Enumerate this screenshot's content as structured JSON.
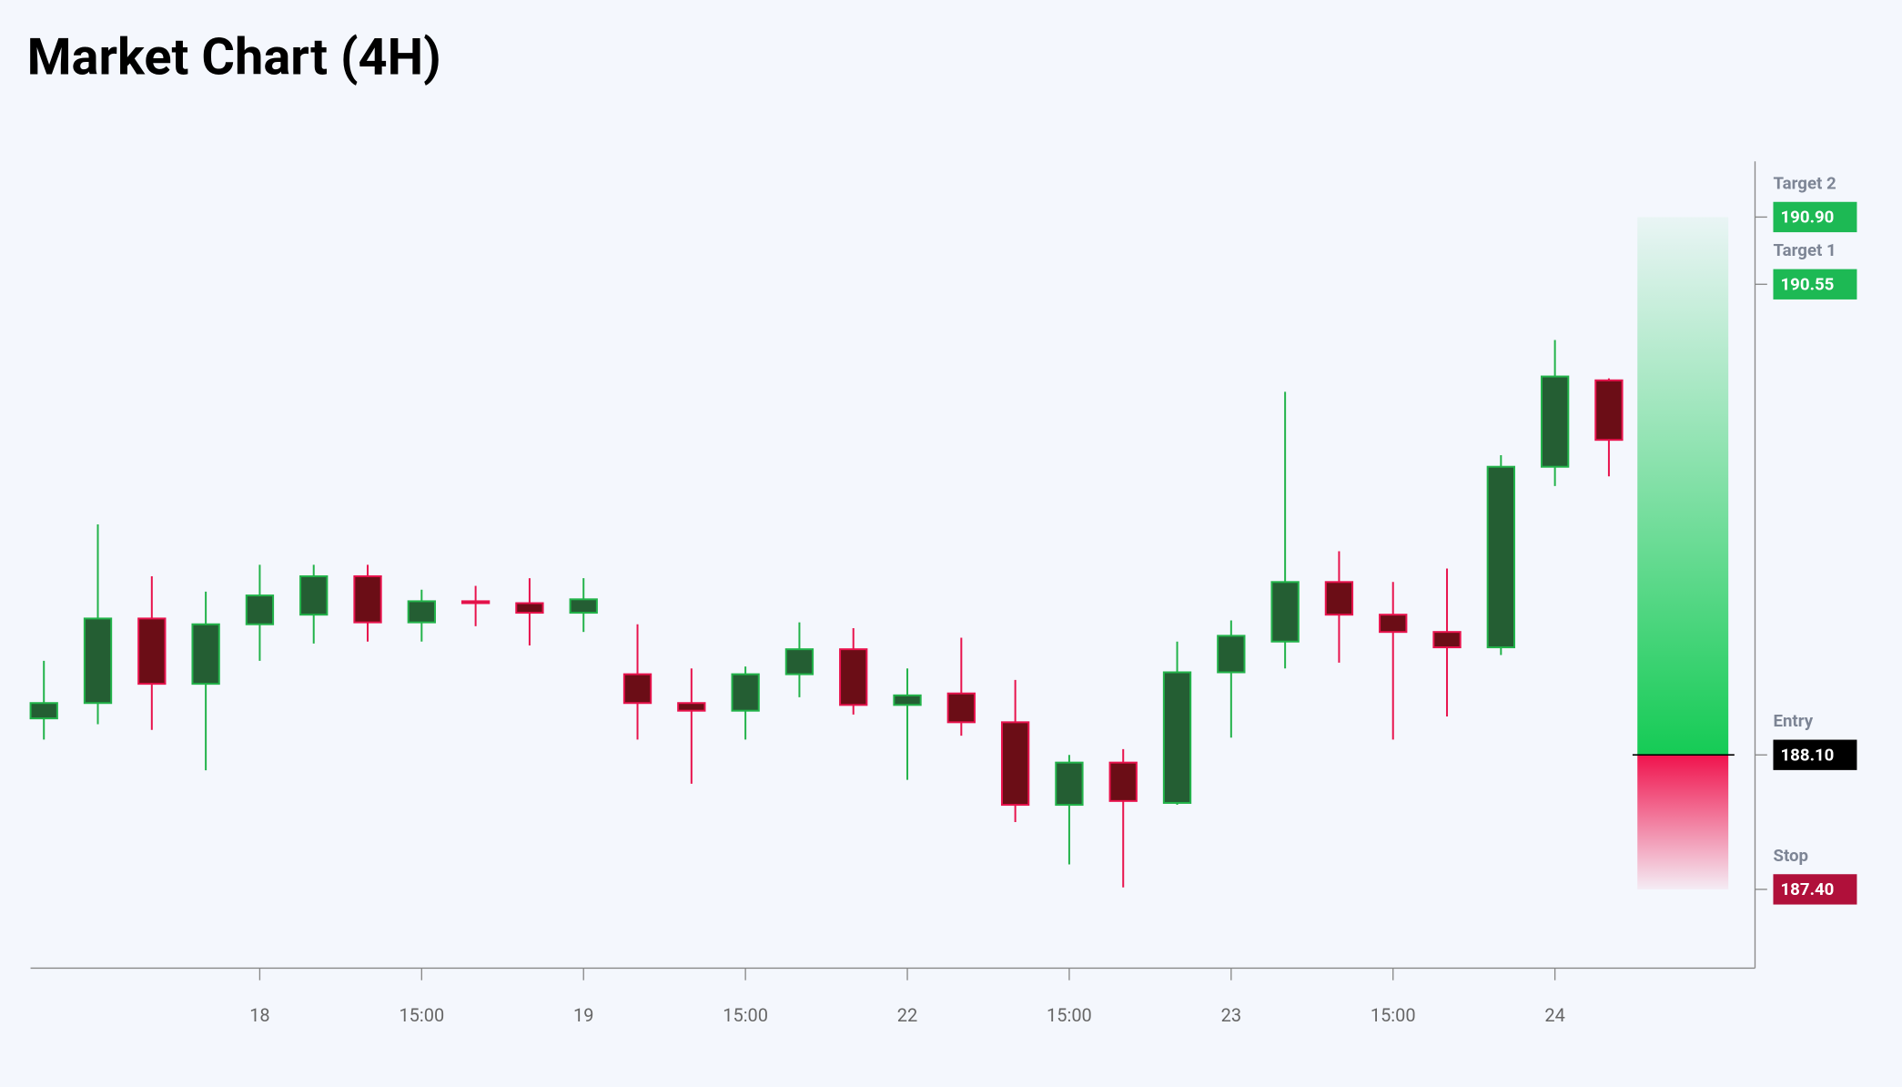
{
  "chart_data": {
    "type": "candlestick",
    "title": "Market Chart (4H)",
    "categories": [
      null,
      null,
      null,
      null,
      "18",
      null,
      null,
      "15:00",
      null,
      null,
      "19",
      null,
      null,
      "15:00",
      null,
      null,
      "22",
      null,
      null,
      "15:00",
      null,
      null,
      "23",
      null,
      null,
      "15:00",
      null,
      null,
      "24",
      null
    ],
    "open": [
      188.29,
      188.37,
      188.81,
      188.47,
      188.78,
      188.83,
      189.03,
      188.79,
      188.9,
      188.89,
      188.84,
      188.52,
      188.37,
      188.33,
      188.52,
      188.65,
      188.36,
      188.42,
      188.27,
      187.84,
      188.06,
      187.85,
      188.53,
      188.69,
      189.0,
      188.83,
      188.74,
      188.66,
      189.6,
      190.05
    ],
    "high": [
      188.59,
      189.3,
      189.03,
      188.95,
      189.09,
      189.09,
      189.09,
      188.96,
      188.98,
      189.02,
      189.02,
      188.78,
      188.55,
      188.56,
      188.79,
      188.76,
      188.55,
      188.71,
      188.49,
      188.1,
      188.13,
      188.69,
      188.8,
      189.99,
      189.16,
      189.0,
      189.07,
      189.66,
      190.26,
      190.06
    ],
    "low": [
      188.18,
      188.26,
      188.23,
      188.02,
      188.59,
      188.68,
      188.69,
      188.69,
      188.77,
      188.67,
      188.74,
      188.18,
      187.95,
      188.18,
      188.4,
      188.31,
      187.97,
      188.2,
      187.75,
      187.53,
      187.41,
      187.84,
      188.19,
      188.55,
      188.58,
      188.18,
      188.3,
      188.62,
      189.5,
      189.55
    ],
    "close": [
      188.37,
      188.81,
      188.47,
      188.78,
      188.93,
      189.03,
      188.79,
      188.9,
      188.89,
      188.84,
      188.91,
      188.37,
      188.33,
      188.52,
      188.65,
      188.36,
      188.41,
      188.27,
      187.84,
      188.06,
      187.86,
      188.53,
      188.72,
      189.0,
      188.83,
      188.74,
      188.66,
      189.6,
      190.07,
      189.74
    ],
    "up_color": "#22b34a",
    "up_fill": "#245e33",
    "down_color": "#e8134d",
    "down_fill": "#6b0d16",
    "ylim": [
      186.99,
      191.19
    ],
    "levels": [
      {
        "name": "Target 2",
        "value": 190.9,
        "label": "190.90",
        "color": "#1db954",
        "kind": "target"
      },
      {
        "name": "Target 1",
        "value": 190.55,
        "label": "190.55",
        "color": "#1db954",
        "kind": "target"
      },
      {
        "name": "Entry",
        "value": 188.1,
        "label": "188.10",
        "color": "#000000",
        "kind": "entry"
      },
      {
        "name": "Stop",
        "value": 187.4,
        "label": "187.40",
        "color": "#b0103a",
        "kind": "stop"
      }
    ]
  }
}
